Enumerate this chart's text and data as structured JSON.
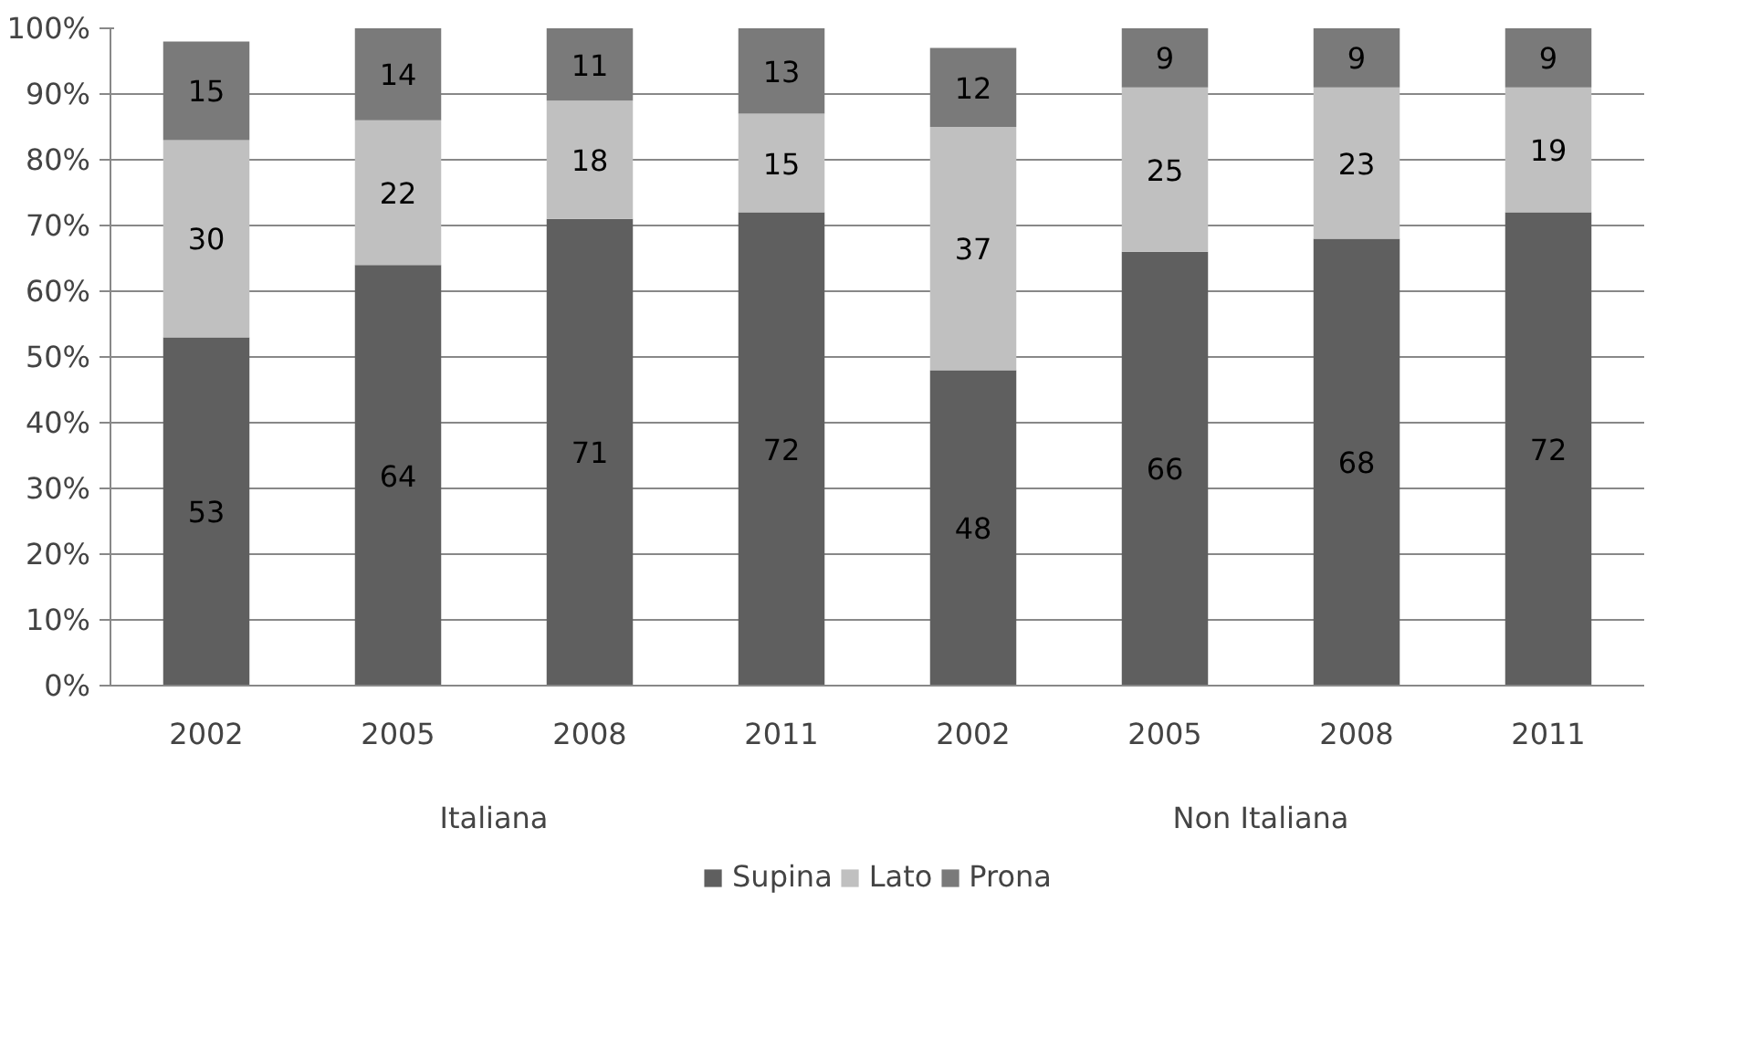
{
  "chart_data": {
    "type": "bar",
    "stacked": true,
    "categories": [
      "2002",
      "2005",
      "2008",
      "2011",
      "2002",
      "2005",
      "2008",
      "2011"
    ],
    "annotations": [
      "Italiana",
      "Non Italiana"
    ],
    "series": [
      {
        "name": "Supina",
        "color": "#5f5f5f",
        "values": [
          53,
          64,
          71,
          72,
          48,
          66,
          68,
          72
        ]
      },
      {
        "name": "Lato",
        "color": "#c0c0c0",
        "values": [
          30,
          22,
          18,
          15,
          37,
          25,
          23,
          19
        ]
      },
      {
        "name": "Prona",
        "color": "#7a7a7a",
        "values": [
          15,
          14,
          11,
          13,
          12,
          9,
          9,
          9
        ]
      }
    ],
    "ylim": [
      0,
      100
    ],
    "yticks": [
      {
        "value": 0,
        "label": "0%"
      },
      {
        "value": 10,
        "label": "10%"
      },
      {
        "value": 20,
        "label": "20%"
      },
      {
        "value": 30,
        "label": "30%"
      },
      {
        "value": 40,
        "label": "40%"
      },
      {
        "value": 50,
        "label": "50%"
      },
      {
        "value": 60,
        "label": "60%"
      },
      {
        "value": 70,
        "label": "70%"
      },
      {
        "value": 80,
        "label": "80%"
      },
      {
        "value": 90,
        "label": "90%"
      },
      {
        "value": 100,
        "label": "100%"
      }
    ],
    "grid": "y",
    "legend": "bottom",
    "data_labels": true
  }
}
